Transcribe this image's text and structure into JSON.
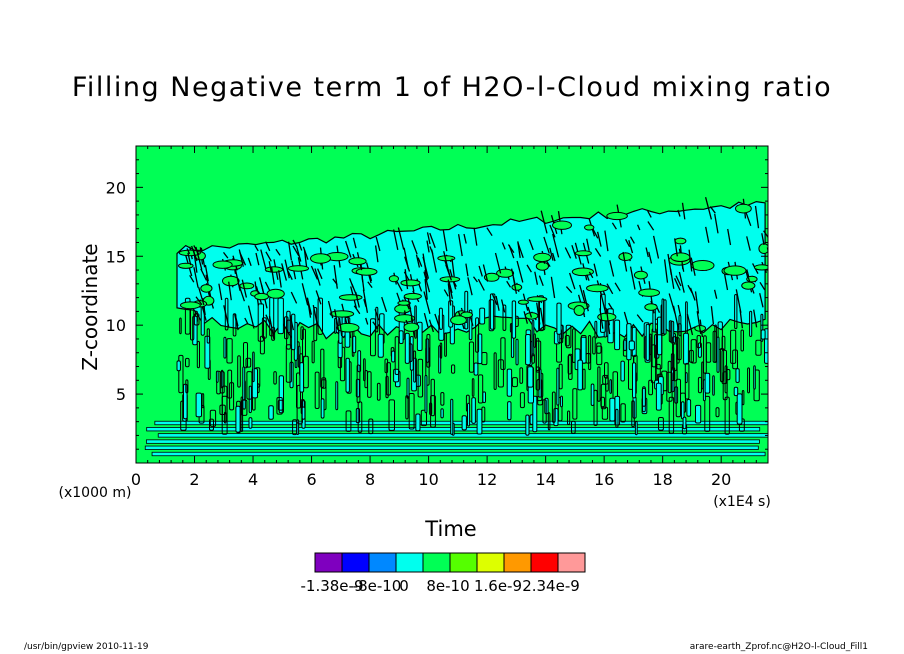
{
  "chart_data": {
    "type": "heatmap",
    "title": "Filling Negative term 1 of H2O-l-Cloud mixing ratio",
    "xlabel": "Time",
    "x_unit": "(x1E4 s)",
    "ylabel": "Z-coordinate",
    "y_unit": "(x1000 m)",
    "xlim": [
      0,
      21.6
    ],
    "ylim": [
      0,
      23
    ],
    "x_ticks": [
      "0",
      "2",
      "4",
      "6",
      "8",
      "10",
      "12",
      "14",
      "16",
      "18",
      "20"
    ],
    "y_ticks": [
      "5",
      "10",
      "15",
      "20"
    ],
    "background_field_color": "#00ff55",
    "cloud_field_color": "#00ffee",
    "cloud_band": {
      "top": [
        [
          1.5,
          15.5
        ],
        [
          4,
          15.8
        ],
        [
          8,
          16.5
        ],
        [
          12,
          17.3
        ],
        [
          16,
          18.0
        ],
        [
          20,
          18.6
        ],
        [
          21.6,
          18.8
        ]
      ],
      "base": [
        [
          1.5,
          11.0
        ],
        [
          4,
          9.8
        ],
        [
          8,
          9.5
        ],
        [
          12,
          10.2
        ],
        [
          16,
          9.6
        ],
        [
          20,
          9.8
        ],
        [
          21.6,
          10.3
        ]
      ]
    },
    "convective_onset": 1.4,
    "legend": {
      "colors": [
        "#7f00bf",
        "#0000ff",
        "#0088ff",
        "#00ffee",
        "#00ff55",
        "#55ff00",
        "#ddff00",
        "#ff9900",
        "#ff0000",
        "#ff9999"
      ],
      "labels": [
        "-1.38e-9",
        "-8e-10",
        "0",
        "8e-10",
        "1.6e-9",
        "2.34e-9"
      ]
    }
  },
  "footer": {
    "left": "/usr/bin/gpview  2010-11-19",
    "right": "arare-earth_Zprof.nc@H2O-l-Cloud_Fill1"
  }
}
